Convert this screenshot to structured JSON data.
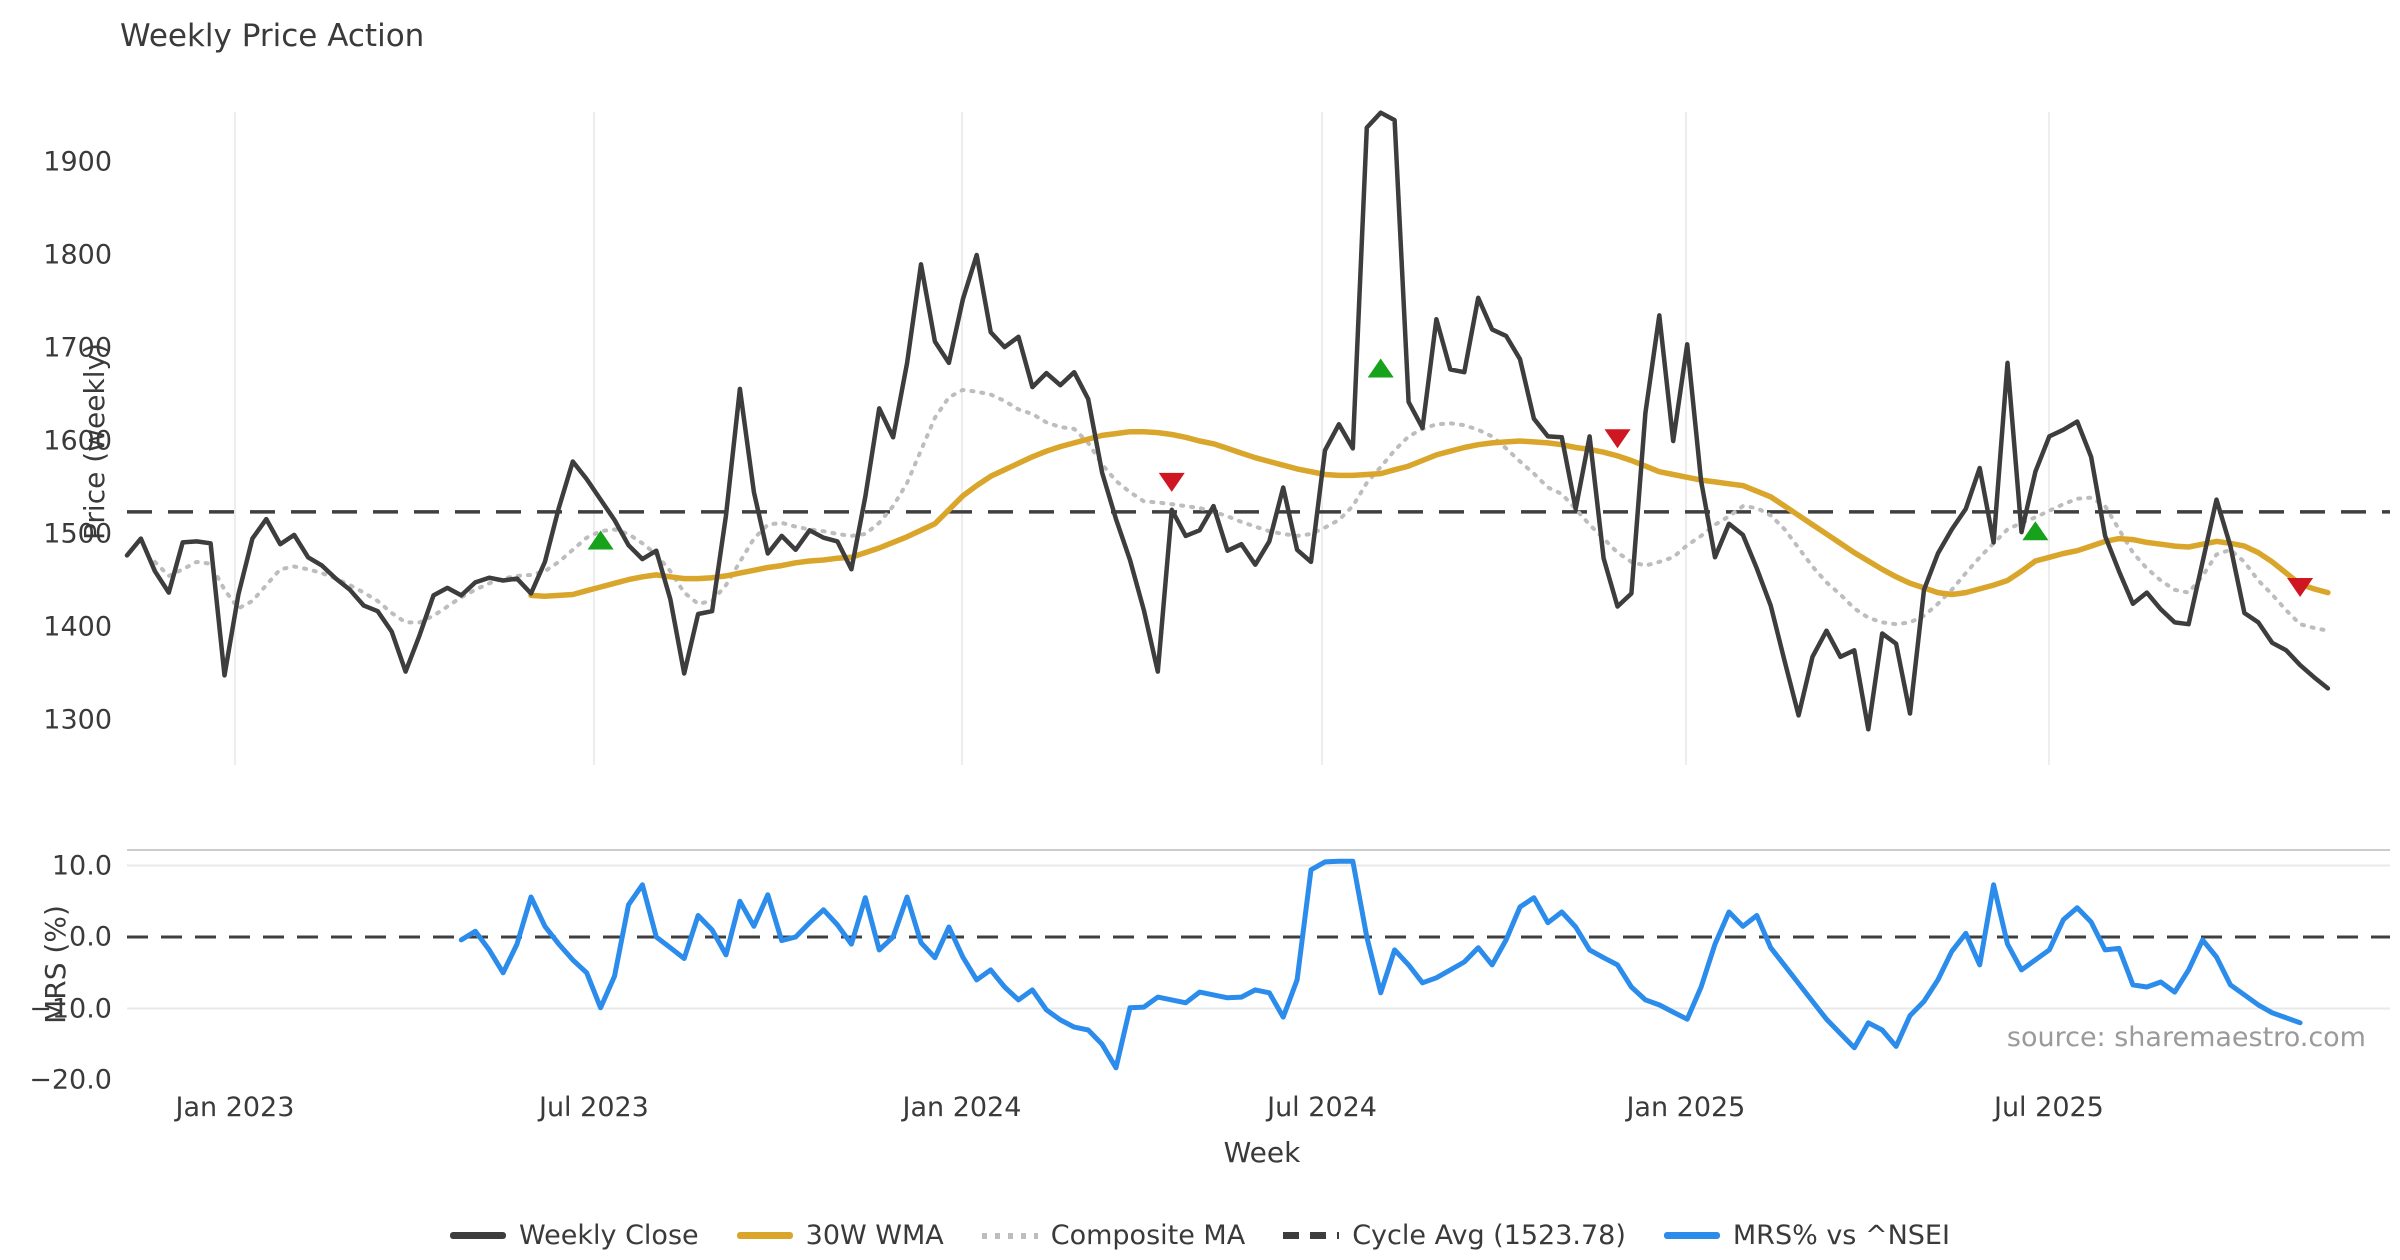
{
  "title": "Weekly Price Action",
  "source_note": "source: sharemaestro.com",
  "colors": {
    "close": "#3d3d3d",
    "wma30": "#d9a62b",
    "composite": "#bdbdbd",
    "cycle_avg": "#3f3f3f",
    "mrs": "#2b8ceb",
    "marker_up": "#16a21a",
    "marker_down": "#cf1722",
    "gridline": "#ededed",
    "panel_border": "#cccccc",
    "text": "#3a3a3a",
    "muted_text": "#9a9a9a"
  },
  "legend": [
    {
      "label": "Weekly Close",
      "swatch": "solid",
      "color": "#3d3d3d"
    },
    {
      "label": "30W WMA",
      "swatch": "solid",
      "color": "#d9a62b"
    },
    {
      "label": "Composite MA",
      "swatch": "dotted",
      "color": "#bdbdbd"
    },
    {
      "label": "Cycle Avg (1523.78)",
      "swatch": "dashed",
      "color": "#3d3d3d"
    },
    {
      "label": "MRS% vs ^NSEI",
      "swatch": "solid",
      "color": "#2b8ceb"
    }
  ],
  "chart_data": {
    "type": "line",
    "x_axis": {
      "title": "Week",
      "unit": "weekly bars, Nov 2022 - Nov 2025",
      "ticks": [
        {
          "label": "Jan 2023",
          "week": 7.75
        },
        {
          "label": "Jul 2023",
          "week": 33.52
        },
        {
          "label": "Jan 2024",
          "week": 59.94
        },
        {
          "label": "Jul 2024",
          "week": 85.79
        },
        {
          "label": "Jan 2025",
          "week": 111.91
        },
        {
          "label": "Jul 2025",
          "week": 137.97
        }
      ]
    },
    "price_panel": {
      "ylabel": "Price (weekly)",
      "yticks": [
        1900,
        1800,
        1700,
        1600,
        1500,
        1400,
        1300
      ],
      "ylim": [
        1255,
        1985
      ],
      "grid": "vertical-only",
      "cycle_avg": 1523.78,
      "series": [
        {
          "name": "Weekly Close",
          "start_week": 0,
          "values": [
            1477,
            1495,
            1460,
            1437,
            1491,
            1492,
            1490,
            1348,
            1435,
            1495,
            1516,
            1489,
            1499,
            1475,
            1466,
            1452,
            1440,
            1423,
            1417,
            1395,
            1352,
            1391,
            1434,
            1442,
            1434,
            1448,
            1453,
            1450,
            1452,
            1436,
            1470,
            1528,
            1578,
            1559,
            1537,
            1515,
            1488,
            1473,
            1482,
            1430,
            1350,
            1414,
            1417,
            1520,
            1656,
            1545,
            1479,
            1498,
            1483,
            1504,
            1496,
            1492,
            1462,
            1540,
            1635,
            1604,
            1684,
            1790,
            1707,
            1684,
            1752,
            1800,
            1717,
            1701,
            1712,
            1658,
            1673,
            1660,
            1674,
            1645,
            1566,
            1516,
            1472,
            1418,
            1352,
            1526,
            1498,
            1504,
            1530,
            1482,
            1489,
            1467,
            1492,
            1550,
            1483,
            1470,
            1590,
            1618,
            1592,
            1937,
            1953,
            1945,
            1642,
            1614,
            1731,
            1677,
            1674,
            1754,
            1720,
            1713,
            1688,
            1624,
            1605,
            1604,
            1527,
            1605,
            1474,
            1422,
            1436,
            1630,
            1735,
            1600,
            1704,
            1557,
            1475,
            1511,
            1499,
            1463,
            1423,
            1363,
            1305,
            1368,
            1396,
            1368,
            1375,
            1290,
            1393,
            1382,
            1307,
            1440,
            1479,
            1505,
            1527,
            1571,
            1491,
            1684,
            1502,
            1567,
            1605,
            1612,
            1621,
            1583,
            1498,
            1460,
            1425,
            1437,
            1419,
            1405,
            1403,
            1470,
            1537,
            1487,
            1415,
            1405,
            1383,
            1375,
            1359,
            1346,
            1334
          ]
        },
        {
          "name": "30W WMA",
          "start_week": 29,
          "values": [
            1434,
            1433,
            1434,
            1435,
            1439,
            1443,
            1447,
            1451,
            1454,
            1456,
            1454,
            1452,
            1452,
            1453,
            1455,
            1458,
            1461,
            1464,
            1466,
            1469,
            1471,
            1472,
            1474,
            1475,
            1480,
            1485,
            1491,
            1497,
            1504,
            1511,
            1526,
            1541,
            1552,
            1562,
            1569,
            1576,
            1583,
            1589,
            1594,
            1598,
            1602,
            1606,
            1608,
            1610,
            1610,
            1609,
            1607,
            1604,
            1600,
            1597,
            1592,
            1587,
            1582,
            1578,
            1574,
            1570,
            1567,
            1564,
            1563,
            1563,
            1564,
            1565,
            1569,
            1573,
            1579,
            1585,
            1589,
            1593,
            1596,
            1598,
            1599,
            1600,
            1599,
            1598,
            1596,
            1593,
            1591,
            1588,
            1584,
            1579,
            1573,
            1567,
            1564,
            1561,
            1558,
            1556,
            1554,
            1552,
            1546,
            1540,
            1530,
            1520,
            1510,
            1500,
            1490,
            1480,
            1471,
            1462,
            1454,
            1447,
            1442,
            1437,
            1435,
            1437,
            1441,
            1445,
            1450,
            1460,
            1471,
            1475,
            1479,
            1482,
            1487,
            1492,
            1495,
            1494,
            1491,
            1489,
            1487,
            1486,
            1489,
            1492,
            1490,
            1487,
            1480,
            1470,
            1458,
            1446,
            1441,
            1437
          ]
        },
        {
          "name": "Composite MA",
          "start_week": 2,
          "values": [
            1470,
            1455,
            1462,
            1470,
            1468,
            1440,
            1420,
            1428,
            1445,
            1462,
            1465,
            1462,
            1458,
            1452,
            1445,
            1437,
            1428,
            1415,
            1405,
            1405,
            1412,
            1422,
            1432,
            1440,
            1447,
            1452,
            1455,
            1456,
            1460,
            1470,
            1483,
            1496,
            1503,
            1505,
            1500,
            1490,
            1478,
            1460,
            1437,
            1425,
            1428,
            1445,
            1470,
            1495,
            1510,
            1512,
            1508,
            1505,
            1503,
            1500,
            1498,
            1500,
            1512,
            1530,
            1555,
            1590,
            1625,
            1647,
            1655,
            1653,
            1650,
            1643,
            1634,
            1629,
            1620,
            1615,
            1613,
            1598,
            1575,
            1557,
            1545,
            1535,
            1534,
            1532,
            1530,
            1528,
            1524,
            1519,
            1513,
            1508,
            1503,
            1500,
            1498,
            1500,
            1507,
            1515,
            1530,
            1555,
            1572,
            1590,
            1605,
            1613,
            1618,
            1619,
            1617,
            1612,
            1605,
            1592,
            1578,
            1565,
            1550,
            1543,
            1527,
            1510,
            1495,
            1480,
            1470,
            1466,
            1470,
            1475,
            1488,
            1498,
            1510,
            1519,
            1530,
            1528,
            1520,
            1505,
            1485,
            1465,
            1448,
            1435,
            1420,
            1410,
            1405,
            1403,
            1405,
            1412,
            1425,
            1440,
            1458,
            1475,
            1490,
            1505,
            1512,
            1518,
            1525,
            1532,
            1538,
            1539,
            1530,
            1505,
            1480,
            1463,
            1450,
            1440,
            1437,
            1455,
            1478,
            1483,
            1470,
            1450,
            1435,
            1418,
            1403,
            1399,
            1396
          ]
        }
      ],
      "markers": {
        "buy": [
          {
            "week": 34,
            "price": 1493
          },
          {
            "week": 90,
            "price": 1678
          },
          {
            "week": 137,
            "price": 1503
          }
        ],
        "sell": [
          {
            "week": 75,
            "price": 1556
          },
          {
            "week": 107,
            "price": 1603
          },
          {
            "week": 156,
            "price": 1443
          }
        ]
      }
    },
    "mrs_panel": {
      "ylabel": "MRS (%)",
      "ytick_labels": [
        "10.0",
        "0.0",
        "−10.0",
        "−20.0"
      ],
      "ytick_values": [
        10.0,
        0.0,
        -10.0,
        -20.0
      ],
      "ylim": [
        -22,
        12
      ],
      "zero_line_dashed": true,
      "gridline_values": [
        10.0,
        -10.0
      ],
      "series": [
        {
          "name": "MRS% vs ^NSEI",
          "start_week": 24,
          "values": [
            -0.4,
            0.8,
            -1.8,
            -5.0,
            -1.0,
            5.6,
            1.5,
            -1.0,
            -3.2,
            -5.0,
            -9.9,
            -5.5,
            4.5,
            7.3,
            0.0,
            -1.5,
            -3.0,
            3.0,
            1.0,
            -2.5,
            5.0,
            1.5,
            5.9,
            -0.5,
            0.0,
            2.0,
            3.8,
            1.7,
            -1.0,
            5.5,
            -1.8,
            0.0,
            5.6,
            -0.8,
            -2.9,
            1.4,
            -2.8,
            -6.0,
            -4.6,
            -7.0,
            -8.8,
            -7.4,
            -10.2,
            -11.6,
            -12.6,
            -13.0,
            -15.0,
            -18.3,
            -9.9,
            -9.8,
            -8.4,
            -8.8,
            -9.2,
            -7.7,
            -8.1,
            -8.5,
            -8.4,
            -7.4,
            -7.8,
            -11.2,
            -6.0,
            9.4,
            10.5,
            10.6,
            10.6,
            0.0,
            -7.8,
            -1.8,
            -3.9,
            -6.4,
            -5.7,
            -4.6,
            -3.5,
            -1.5,
            -3.9,
            -0.4,
            4.2,
            5.5,
            2.0,
            3.5,
            1.4,
            -1.8,
            -2.9,
            -3.9,
            -7.0,
            -8.8,
            -9.5,
            -10.5,
            -11.5,
            -7.0,
            -1.0,
            3.5,
            1.5,
            3.0,
            -1.5,
            -4.0,
            -6.5,
            -9.0,
            -11.5,
            -13.5,
            -15.5,
            -12.0,
            -13.0,
            -15.3,
            -11.0,
            -9.0,
            -6.0,
            -2.0,
            0.5,
            -3.9,
            7.3,
            -1.0,
            -4.6,
            -3.2,
            -1.8,
            2.4,
            4.1,
            2.1,
            -1.8,
            -1.6,
            -6.7,
            -7.0,
            -6.3,
            -7.7,
            -4.6,
            -0.4,
            -2.8,
            -6.7,
            -8.1,
            -9.5,
            -10.6,
            -11.3,
            -12.0
          ]
        }
      ]
    }
  }
}
